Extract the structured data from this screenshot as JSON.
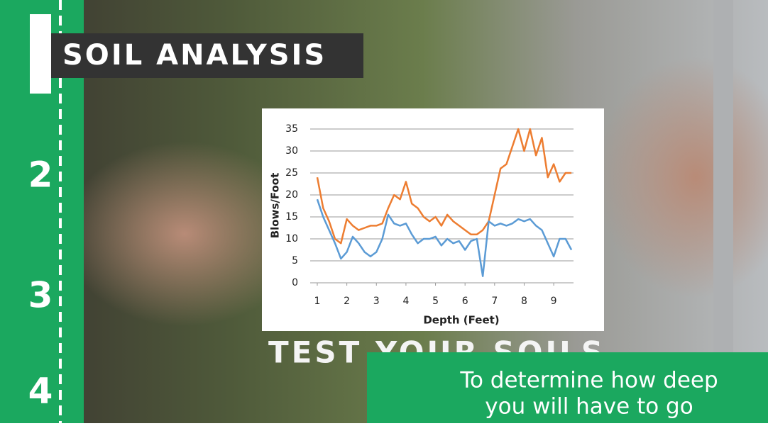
{
  "header": {
    "title": "SOIL ANALYSIS"
  },
  "sidebar": {
    "steps": [
      "2",
      "3",
      "4"
    ]
  },
  "caption": {
    "title": "TEST YOUR SOILS",
    "lines": [
      "To determine how deep",
      "you will have to go"
    ]
  },
  "chart_data": {
    "type": "line",
    "x_label": "Depth (Feet)",
    "y_label": "Blows/Foot",
    "x": [
      1.0,
      1.2,
      1.4,
      1.6,
      1.8,
      2.0,
      2.2,
      2.4,
      2.6,
      2.8,
      3.0,
      3.2,
      3.4,
      3.6,
      3.8,
      4.0,
      4.2,
      4.4,
      4.6,
      4.8,
      5.0,
      5.2,
      5.4,
      5.6,
      5.8,
      6.0,
      6.2,
      6.4,
      6.6,
      6.8,
      7.0,
      7.2,
      7.4,
      7.6,
      7.8,
      8.0,
      8.2,
      8.4,
      8.6,
      8.8,
      9.0,
      9.2,
      9.4,
      9.6
    ],
    "series": [
      {
        "color": "#ed7d31",
        "values": [
          24,
          17,
          14,
          10,
          9,
          14.5,
          13,
          12,
          12.5,
          13,
          13,
          13.5,
          17,
          20,
          19,
          23,
          18,
          17,
          15,
          14,
          15,
          13,
          15.5,
          14,
          13,
          12,
          11,
          11,
          12,
          14,
          20,
          26,
          27,
          31,
          35,
          30,
          35,
          29,
          33,
          24,
          27,
          23,
          25,
          25
        ]
      },
      {
        "color": "#5b9bd5",
        "values": [
          19,
          15,
          12,
          9,
          5.5,
          7,
          10.5,
          9,
          7,
          6,
          7,
          10,
          15.5,
          13.5,
          13,
          13.5,
          11,
          9,
          10,
          10,
          10.5,
          8.5,
          10,
          9,
          9.5,
          7.5,
          9.5,
          10,
          1.5,
          14,
          13,
          13.5,
          13,
          13.5,
          14.5,
          14,
          14.5,
          13,
          12,
          9,
          6,
          10,
          10,
          7.5
        ]
      }
    ],
    "xlim": [
      0.76,
      9.67
    ],
    "ylim": [
      0,
      35
    ],
    "xticks": [
      1,
      2,
      3,
      4,
      5,
      6,
      7,
      8,
      9
    ],
    "yticks": [
      0,
      5,
      10,
      15,
      20,
      25,
      30,
      35
    ],
    "grid": true
  }
}
